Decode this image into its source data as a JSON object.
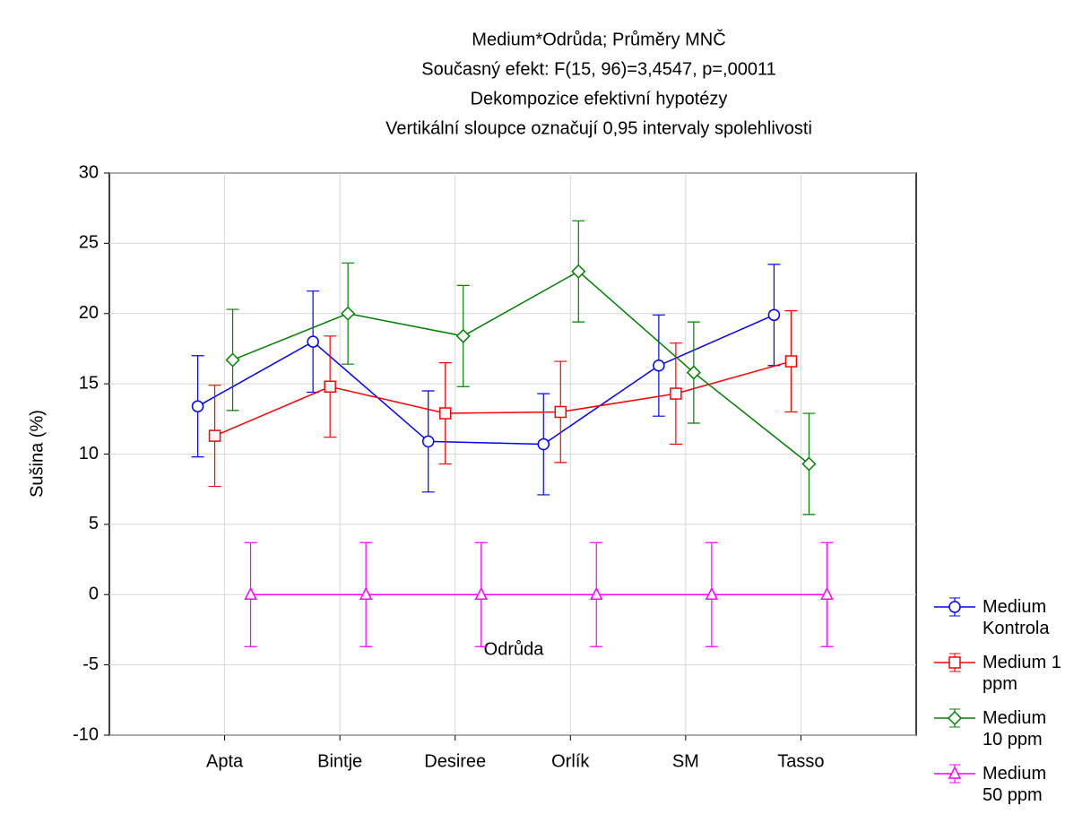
{
  "chart_data": {
    "type": "line",
    "title": [
      "Medium*Odrůda; Průměry MNČ",
      "Současný efekt: F(15, 96)=3,4547, p=,00011",
      "Dekompozice efektivní hypotézy",
      "Vertikální sloupce označují 0,95 intervaly spolehlivosti"
    ],
    "x_label": "Odrůda",
    "y_label": "Sušina (%)",
    "categories": [
      "Apta",
      "Bintje",
      "Desiree",
      "Orlík",
      "SM",
      "Tasso"
    ],
    "series": [
      {
        "name": "Medium Kontrola",
        "color": "#0000ff",
        "marker": "circle",
        "values": [
          13.4,
          18.0,
          10.9,
          10.7,
          16.3,
          19.9
        ],
        "errors": [
          3.6,
          3.6,
          3.6,
          3.6,
          3.6,
          3.6
        ]
      },
      {
        "name": "Medium 1 ppm",
        "color": "#ff0000",
        "marker": "square",
        "values": [
          11.3,
          14.8,
          12.9,
          13.0,
          14.3,
          16.6
        ],
        "errors": [
          3.6,
          3.6,
          3.6,
          3.6,
          3.6,
          3.6
        ]
      },
      {
        "name": "Medium 10 ppm",
        "color": "#008000",
        "marker": "diamond",
        "values": [
          16.7,
          20.0,
          18.4,
          23.0,
          15.8,
          9.3
        ],
        "errors": [
          3.6,
          3.6,
          3.6,
          3.6,
          3.6,
          3.6
        ]
      },
      {
        "name": "Medium 50 ppm",
        "color": "#ff00ff",
        "marker": "triangle",
        "values": [
          0,
          0,
          0,
          0,
          0,
          0
        ],
        "errors": [
          3.7,
          3.7,
          3.7,
          3.7,
          3.7,
          3.7
        ]
      }
    ],
    "ylim": [
      -10,
      30
    ],
    "yticks": [
      -10,
      -5,
      0,
      5,
      10,
      15,
      20,
      25,
      30
    ],
    "grid": true,
    "legend": "right"
  }
}
